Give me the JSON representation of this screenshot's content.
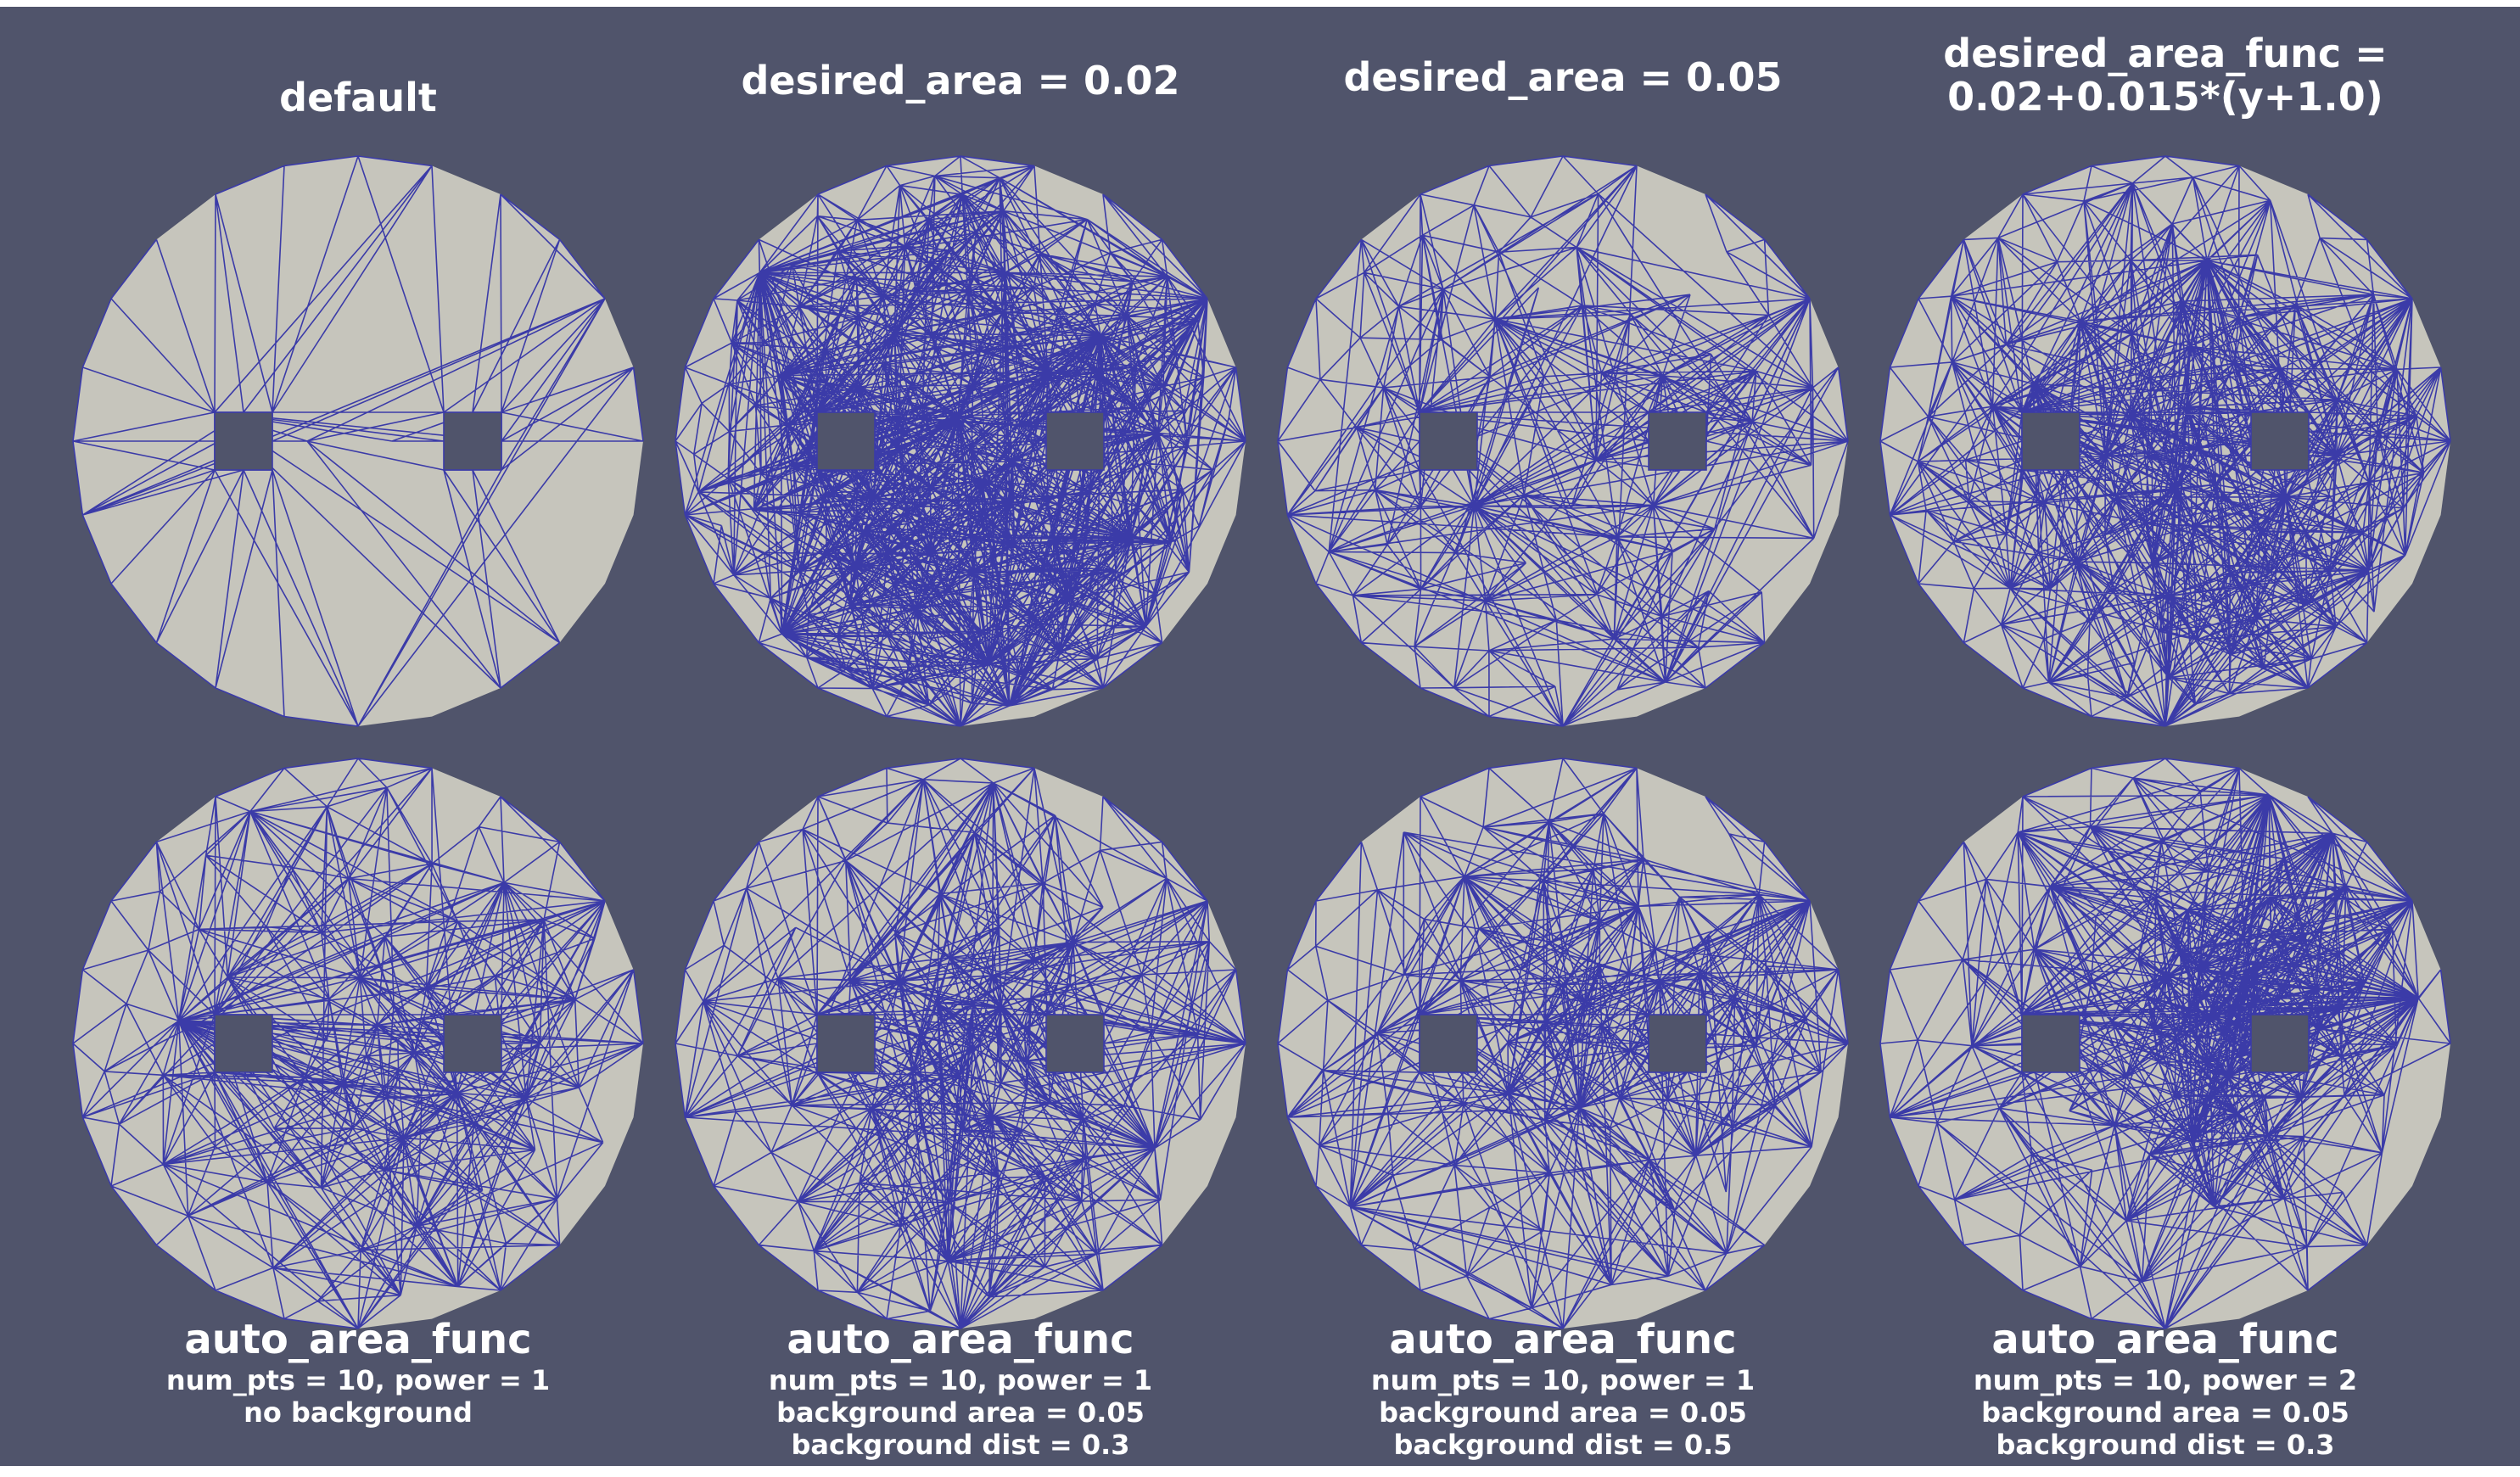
{
  "figure": {
    "colors": {
      "background": "#50546b",
      "mesh_fill": "#c6c5bc",
      "mesh_edges": "#3b3ba8",
      "text": "#ffffff"
    },
    "panels": [
      {
        "title_lines": [
          "default"
        ],
        "subtitle_lines": [],
        "mesh_density": "coarse_fan"
      },
      {
        "title_lines": [
          "desired_area = 0.02"
        ],
        "subtitle_lines": [],
        "mesh_density": "fine_uniform"
      },
      {
        "title_lines": [
          "desired_area = 0.05"
        ],
        "subtitle_lines": [],
        "mesh_density": "medium_uniform"
      },
      {
        "title_lines": [
          "desired_area_func =",
          "0.02+0.015*(y+1.0)"
        ],
        "subtitle_lines": [],
        "mesh_density": "graded_vertical"
      },
      {
        "title_lines": [
          "auto_area_func"
        ],
        "subtitle_lines": [
          "num_pts = 10, power = 1",
          "no background"
        ],
        "mesh_density": "auto_center"
      },
      {
        "title_lines": [
          "auto_area_func"
        ],
        "subtitle_lines": [
          "num_pts = 10, power = 1",
          "background area = 0.05",
          "background dist = 0.3"
        ],
        "mesh_density": "auto_center_bg"
      },
      {
        "title_lines": [
          "auto_area_func"
        ],
        "subtitle_lines": [
          "num_pts = 10, power = 1",
          "background area = 0.05",
          "background dist = 0.5"
        ],
        "mesh_density": "auto_center_bg_wide"
      },
      {
        "title_lines": [
          "auto_area_func"
        ],
        "subtitle_lines": [
          "num_pts = 10, power = 2",
          "background area = 0.05",
          "background dist = 0.3"
        ],
        "mesh_density": "auto_center_bg_power2"
      }
    ]
  }
}
